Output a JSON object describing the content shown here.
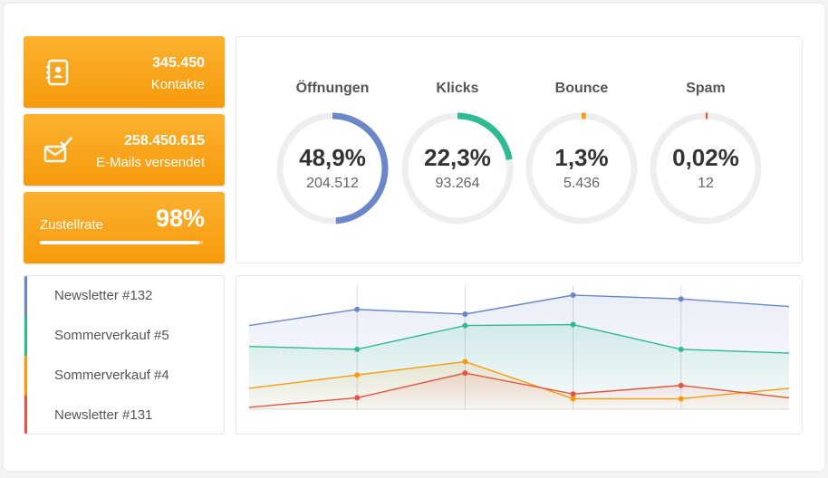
{
  "cards": {
    "contacts": {
      "value": "345.450",
      "label": "Kontakte",
      "icon": "contact-book-icon"
    },
    "emails": {
      "value": "258.450.615",
      "label": "E-Mails versendet",
      "icon": "mail-check-icon"
    },
    "delivery": {
      "label": "Zustellrate",
      "value": "98%",
      "progress": 0.98
    }
  },
  "stats": [
    {
      "title": "Öffnungen",
      "percent": "48,9%",
      "count": "204.512",
      "fraction": 0.489,
      "color": "#6b86c9"
    },
    {
      "title": "Klicks",
      "percent": "22,3%",
      "count": "93.264",
      "fraction": 0.223,
      "color": "#2dbb93"
    },
    {
      "title": "Bounce",
      "percent": "1,3%",
      "count": "5.436",
      "fraction": 0.013,
      "color": "#f79a0c"
    },
    {
      "title": "Spam",
      "percent": "0,02%",
      "count": "12",
      "fraction": 0.0002,
      "color": "#e8543f"
    }
  ],
  "campaigns": [
    {
      "name": "Newsletter #132",
      "color": "#6b86c9"
    },
    {
      "name": "Sommerverkauf #5",
      "color": "#2dbb93"
    },
    {
      "name": "Sommerverkauf #4",
      "color": "#f79a0c"
    },
    {
      "name": "Newsletter #131",
      "color": "#e8543f"
    }
  ],
  "chart_data": {
    "type": "area",
    "x": [
      0,
      1,
      2,
      3,
      4,
      5
    ],
    "series": [
      {
        "name": "Newsletter #132",
        "color": "#6b86c9",
        "values": [
          88,
          105,
          100,
          120,
          116,
          108
        ]
      },
      {
        "name": "Sommerverkauf #5",
        "color": "#2dbb93",
        "values": [
          66,
          63,
          88,
          89,
          63,
          59
        ]
      },
      {
        "name": "Sommerverkauf #4",
        "color": "#f79a0c",
        "values": [
          22,
          36,
          50,
          11,
          11,
          22
        ]
      },
      {
        "name": "Newsletter #131",
        "color": "#e8543f",
        "values": [
          2,
          12,
          38,
          16,
          25,
          12
        ]
      }
    ],
    "ylim": [
      0,
      140
    ],
    "grid": true
  }
}
